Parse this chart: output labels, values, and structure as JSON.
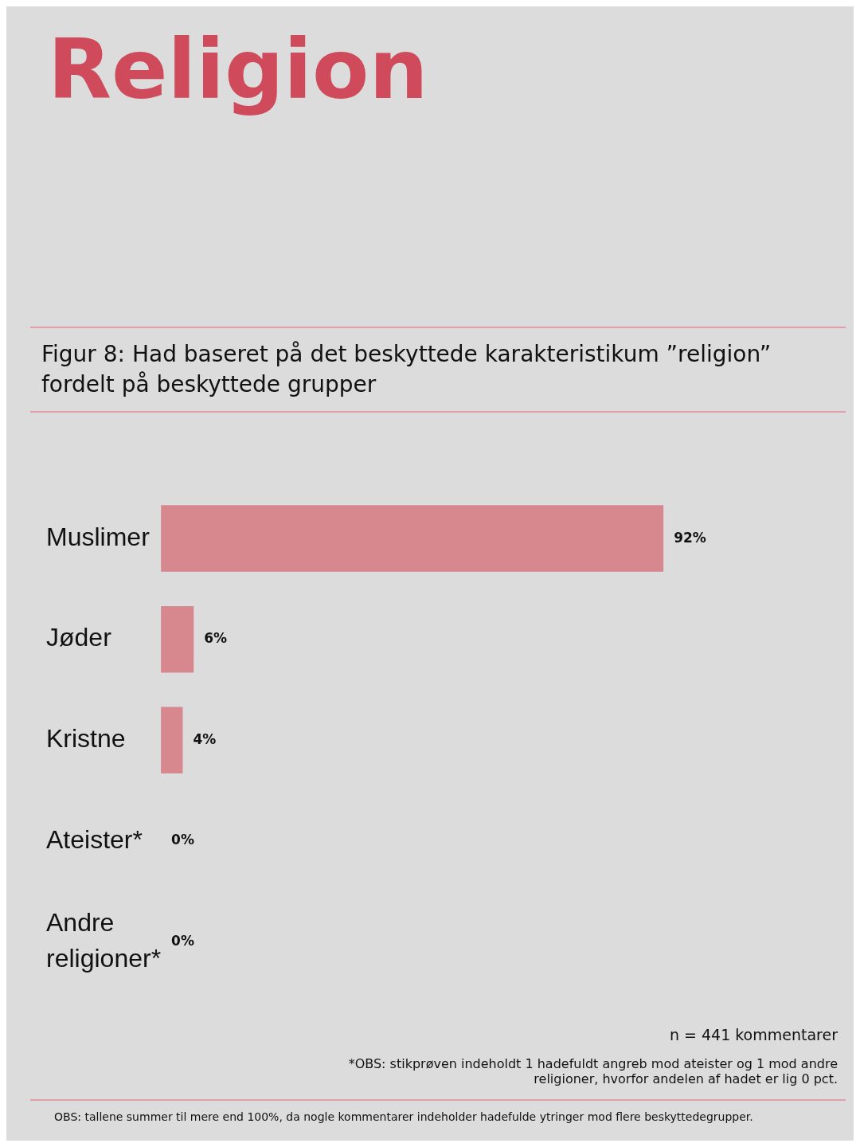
{
  "chart_data": {
    "type": "bar",
    "orientation": "horizontal",
    "tick_labels": "y",
    "title": "Religion",
    "subtitle": "Figur 8: Had baseret på det beskyttede karakteristikum ”religion” fordelt på beskyttede grupper",
    "categories": [
      "Muslimer",
      "Jøder",
      "Kristne",
      "Ateister*",
      "Andre religioner*"
    ],
    "values": [
      92,
      6,
      4,
      0,
      0
    ],
    "value_labels": [
      "92%",
      "6%",
      "4%",
      "0%",
      "0%"
    ],
    "color": "#d7888f",
    "grid": false,
    "legend": false,
    "annotations": [
      "n = 441 kommentarer",
      "*OBS: stikprøven indeholdt 1 hadefuldt angreb mod ateister og 1 mod andre religioner, hvorfor andelen af hadet er lig 0 pct.",
      "OBS: tallene summer til mere end 100%, da nogle kommentarer indeholder hadefulde ytringer mod flere beskyttedegrupper."
    ]
  }
}
